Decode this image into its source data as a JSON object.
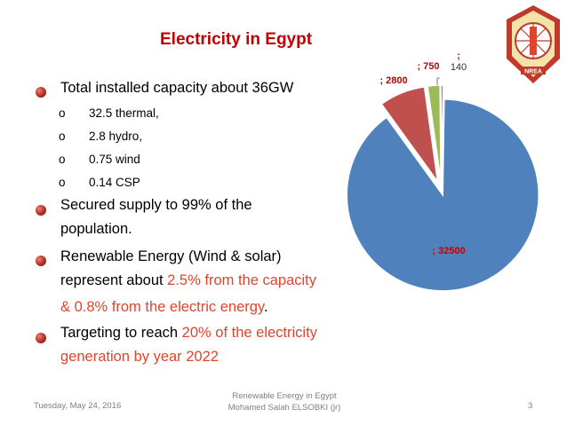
{
  "slide": {
    "title": "Electricity in Egypt",
    "bullets": [
      {
        "text": "Total installed capacity about 36GW"
      },
      {
        "text": "Secured supply to 99% of the"
      },
      {
        "text": "population."
      },
      {
        "text": "Renewable Energy (Wind & solar)"
      },
      {
        "text": "represent about ",
        "highlight": "2.5% from the capacity"
      },
      {
        "highlight": "& 0.8% from the electric energy",
        "after": "."
      },
      {
        "text": "Targeting to reach ",
        "highlight": "20% of the electricity"
      },
      {
        "highlight": "generation by year 2022"
      }
    ],
    "sub_bullets": [
      {
        "marker": "o",
        "text": "32.5 thermal,"
      },
      {
        "marker": "o",
        "text": "2.8 hydro,"
      },
      {
        "marker": "o",
        "text": "0.75 wind"
      },
      {
        "marker": "o",
        "text": "0.14 CSP"
      }
    ],
    "logo_text": "NREA"
  },
  "footer": {
    "date": "Tuesday, May 24, 2016",
    "center_line1": "Renewable Energy in Egypt",
    "center_line2": "Mohamed Salah ELSOBKI (jr)",
    "page": "3"
  },
  "colors": {
    "title": "#c00000",
    "highlight": "#e0442c",
    "slice_thermal": "#4f81bd",
    "slice_hydro": "#c0504d",
    "slice_wind": "#9bbb59",
    "slice_csp": "#8064a2",
    "label": "#c00000"
  },
  "chart_data": {
    "type": "pie",
    "exploded": true,
    "values": [
      32500,
      2800,
      750,
      140
    ],
    "labels": [
      "; 32500",
      "; 2800",
      "; 750",
      ";\n140"
    ],
    "title": ""
  }
}
